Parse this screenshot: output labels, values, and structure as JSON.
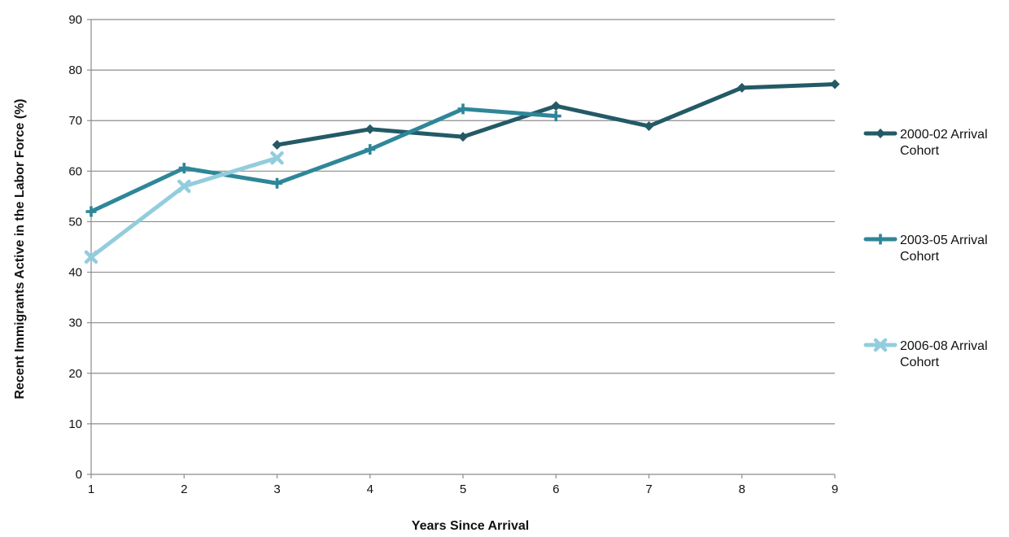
{
  "chart_data": {
    "type": "line",
    "title": "",
    "xlabel": "Years Since Arrival",
    "ylabel": "Recent Immigrants Active in the Labor Force (%)",
    "xlim": [
      1,
      9
    ],
    "ylim": [
      0,
      90
    ],
    "x_ticks": [
      "1",
      "2",
      "3",
      "4",
      "5",
      "6",
      "7",
      "8",
      "9"
    ],
    "y_ticks": [
      "0",
      "10",
      "20",
      "30",
      "40",
      "50",
      "60",
      "70",
      "80",
      "90"
    ],
    "grid": true,
    "legend_position": "right",
    "series": [
      {
        "name_line1": "2000-02 Arrival",
        "name_line2": "Cohort",
        "color": "#235a66",
        "marker": "diamond",
        "points": [
          {
            "x": 3,
            "y": 65.2
          },
          {
            "x": 4,
            "y": 68.3
          },
          {
            "x": 5,
            "y": 66.8
          },
          {
            "x": 6,
            "y": 72.9
          },
          {
            "x": 7,
            "y": 68.9
          },
          {
            "x": 8,
            "y": 76.5
          },
          {
            "x": 9,
            "y": 77.2
          }
        ]
      },
      {
        "name_line1": "2003-05 Arrival",
        "name_line2": "Cohort",
        "color": "#2f8699",
        "marker": "plus",
        "points": [
          {
            "x": 1,
            "y": 52.0
          },
          {
            "x": 2,
            "y": 60.6
          },
          {
            "x": 3,
            "y": 57.6
          },
          {
            "x": 4,
            "y": 64.3
          },
          {
            "x": 5,
            "y": 72.3
          },
          {
            "x": 6,
            "y": 70.9
          }
        ]
      },
      {
        "name_line1": "2006-08 Arrival",
        "name_line2": "Cohort",
        "color": "#93cddd",
        "marker": "x",
        "points": [
          {
            "x": 1,
            "y": 43.0
          },
          {
            "x": 2,
            "y": 57.0
          },
          {
            "x": 3,
            "y": 62.6
          }
        ]
      }
    ]
  }
}
